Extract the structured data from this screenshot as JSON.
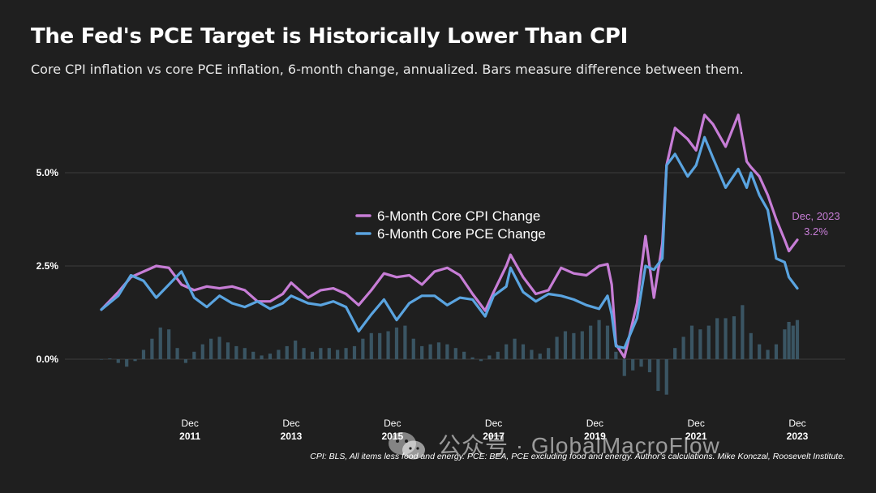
{
  "chart_data": {
    "type": "line",
    "title": "The Fed's PCE Target is Historically Lower Than CPI",
    "subtitle": "Core CPI inflation vs core PCE inflation, 6-month change, annualized. Bars measure difference between them.",
    "ylim": [
      -0.5,
      6.5
    ],
    "y_ticks": [
      "0.0%",
      "2.5%",
      "5.0%"
    ],
    "y_tick_values": [
      0,
      2.5,
      5.0
    ],
    "x_ticks": [
      {
        "month": "Dec",
        "year": "2011",
        "date": 2011.917
      },
      {
        "month": "Dec",
        "year": "2013",
        "date": 2013.917
      },
      {
        "month": "Dec",
        "year": "2015",
        "date": 2015.917
      },
      {
        "month": "Dec",
        "year": "2017",
        "date": 2017.917
      },
      {
        "month": "Dec",
        "year": "2019",
        "date": 2019.917
      },
      {
        "month": "Dec",
        "year": "2021",
        "date": 2021.917
      },
      {
        "month": "Dec",
        "year": "2023",
        "date": 2023.917
      }
    ],
    "xlim": [
      2009.5,
      2024.9
    ],
    "grid": true,
    "legend_position": "center",
    "series": [
      {
        "name": "6-Month Core CPI Change",
        "color": "#c77dd6",
        "points": [
          [
            2010.167,
            1.33
          ],
          [
            2010.5,
            1.8
          ],
          [
            2010.75,
            2.2
          ],
          [
            2011.0,
            2.35
          ],
          [
            2011.25,
            2.5
          ],
          [
            2011.5,
            2.45
          ],
          [
            2011.75,
            2.0
          ],
          [
            2012.0,
            1.85
          ],
          [
            2012.25,
            1.95
          ],
          [
            2012.5,
            1.9
          ],
          [
            2012.75,
            1.95
          ],
          [
            2013.0,
            1.85
          ],
          [
            2013.25,
            1.55
          ],
          [
            2013.5,
            1.55
          ],
          [
            2013.75,
            1.75
          ],
          [
            2013.917,
            2.05
          ],
          [
            2014.25,
            1.65
          ],
          [
            2014.5,
            1.85
          ],
          [
            2014.75,
            1.9
          ],
          [
            2015.0,
            1.75
          ],
          [
            2015.25,
            1.45
          ],
          [
            2015.5,
            1.85
          ],
          [
            2015.75,
            2.3
          ],
          [
            2016.0,
            2.2
          ],
          [
            2016.25,
            2.25
          ],
          [
            2016.5,
            2.0
          ],
          [
            2016.75,
            2.35
          ],
          [
            2017.0,
            2.45
          ],
          [
            2017.25,
            2.25
          ],
          [
            2017.5,
            1.75
          ],
          [
            2017.75,
            1.3
          ],
          [
            2017.917,
            1.8
          ],
          [
            2018.167,
            2.5
          ],
          [
            2018.25,
            2.8
          ],
          [
            2018.5,
            2.2
          ],
          [
            2018.75,
            1.75
          ],
          [
            2019.0,
            1.85
          ],
          [
            2019.25,
            2.45
          ],
          [
            2019.5,
            2.3
          ],
          [
            2019.75,
            2.25
          ],
          [
            2020.0,
            2.5
          ],
          [
            2020.167,
            2.55
          ],
          [
            2020.25,
            2.0
          ],
          [
            2020.333,
            0.4
          ],
          [
            2020.5,
            0.05
          ],
          [
            2020.75,
            1.5
          ],
          [
            2020.917,
            3.3
          ],
          [
            2021.083,
            1.65
          ],
          [
            2021.25,
            3.1
          ],
          [
            2021.333,
            5.2
          ],
          [
            2021.5,
            6.2
          ],
          [
            2021.75,
            5.9
          ],
          [
            2021.917,
            5.6
          ],
          [
            2022.083,
            6.55
          ],
          [
            2022.25,
            6.3
          ],
          [
            2022.5,
            5.7
          ],
          [
            2022.75,
            6.55
          ],
          [
            2022.917,
            5.3
          ],
          [
            2023.0,
            5.15
          ],
          [
            2023.167,
            4.9
          ],
          [
            2023.333,
            4.4
          ],
          [
            2023.5,
            3.75
          ],
          [
            2023.667,
            3.2
          ],
          [
            2023.75,
            2.9
          ],
          [
            2023.917,
            3.2
          ]
        ]
      },
      {
        "name": "6-Month Core PCE Change",
        "color": "#5aa4e0",
        "points": [
          [
            2010.167,
            1.33
          ],
          [
            2010.5,
            1.7
          ],
          [
            2010.75,
            2.25
          ],
          [
            2011.0,
            2.1
          ],
          [
            2011.25,
            1.65
          ],
          [
            2011.5,
            2.0
          ],
          [
            2011.75,
            2.35
          ],
          [
            2012.0,
            1.65
          ],
          [
            2012.25,
            1.4
          ],
          [
            2012.5,
            1.7
          ],
          [
            2012.75,
            1.5
          ],
          [
            2013.0,
            1.4
          ],
          [
            2013.25,
            1.55
          ],
          [
            2013.5,
            1.35
          ],
          [
            2013.75,
            1.5
          ],
          [
            2013.917,
            1.7
          ],
          [
            2014.25,
            1.5
          ],
          [
            2014.5,
            1.45
          ],
          [
            2014.75,
            1.55
          ],
          [
            2015.0,
            1.4
          ],
          [
            2015.25,
            0.75
          ],
          [
            2015.5,
            1.2
          ],
          [
            2015.75,
            1.6
          ],
          [
            2016.0,
            1.05
          ],
          [
            2016.25,
            1.5
          ],
          [
            2016.5,
            1.7
          ],
          [
            2016.75,
            1.7
          ],
          [
            2017.0,
            1.45
          ],
          [
            2017.25,
            1.65
          ],
          [
            2017.5,
            1.6
          ],
          [
            2017.75,
            1.15
          ],
          [
            2017.917,
            1.7
          ],
          [
            2018.167,
            1.95
          ],
          [
            2018.25,
            2.45
          ],
          [
            2018.5,
            1.8
          ],
          [
            2018.75,
            1.55
          ],
          [
            2019.0,
            1.75
          ],
          [
            2019.25,
            1.7
          ],
          [
            2019.5,
            1.6
          ],
          [
            2019.75,
            1.45
          ],
          [
            2020.0,
            1.35
          ],
          [
            2020.167,
            1.7
          ],
          [
            2020.25,
            1.2
          ],
          [
            2020.333,
            0.35
          ],
          [
            2020.5,
            0.3
          ],
          [
            2020.75,
            1.1
          ],
          [
            2020.917,
            2.5
          ],
          [
            2021.083,
            2.4
          ],
          [
            2021.25,
            2.7
          ],
          [
            2021.333,
            5.2
          ],
          [
            2021.5,
            5.5
          ],
          [
            2021.75,
            4.9
          ],
          [
            2021.917,
            5.2
          ],
          [
            2022.083,
            5.95
          ],
          [
            2022.25,
            5.4
          ],
          [
            2022.5,
            4.6
          ],
          [
            2022.75,
            5.1
          ],
          [
            2022.917,
            4.6
          ],
          [
            2023.0,
            5.0
          ],
          [
            2023.167,
            4.4
          ],
          [
            2023.333,
            4.0
          ],
          [
            2023.5,
            2.7
          ],
          [
            2023.667,
            2.6
          ],
          [
            2023.75,
            2.2
          ],
          [
            2023.917,
            1.9
          ]
        ]
      }
    ],
    "bars": {
      "name": "Difference",
      "color": "#3a5563",
      "points": [
        [
          2010.167,
          0.0
        ],
        [
          2010.333,
          0.02
        ],
        [
          2010.5,
          -0.1
        ],
        [
          2010.667,
          -0.2
        ],
        [
          2010.833,
          -0.05
        ],
        [
          2011.0,
          0.25
        ],
        [
          2011.167,
          0.55
        ],
        [
          2011.333,
          0.85
        ],
        [
          2011.5,
          0.8
        ],
        [
          2011.667,
          0.3
        ],
        [
          2011.833,
          -0.1
        ],
        [
          2012.0,
          0.2
        ],
        [
          2012.167,
          0.4
        ],
        [
          2012.333,
          0.55
        ],
        [
          2012.5,
          0.6
        ],
        [
          2012.667,
          0.45
        ],
        [
          2012.833,
          0.35
        ],
        [
          2013.0,
          0.3
        ],
        [
          2013.167,
          0.2
        ],
        [
          2013.333,
          0.1
        ],
        [
          2013.5,
          0.15
        ],
        [
          2013.667,
          0.25
        ],
        [
          2013.833,
          0.35
        ],
        [
          2014.0,
          0.5
        ],
        [
          2014.167,
          0.3
        ],
        [
          2014.333,
          0.2
        ],
        [
          2014.5,
          0.3
        ],
        [
          2014.667,
          0.3
        ],
        [
          2014.833,
          0.25
        ],
        [
          2015.0,
          0.3
        ],
        [
          2015.167,
          0.35
        ],
        [
          2015.333,
          0.55
        ],
        [
          2015.5,
          0.7
        ],
        [
          2015.667,
          0.7
        ],
        [
          2015.833,
          0.75
        ],
        [
          2016.0,
          0.85
        ],
        [
          2016.167,
          0.9
        ],
        [
          2016.333,
          0.55
        ],
        [
          2016.5,
          0.35
        ],
        [
          2016.667,
          0.4
        ],
        [
          2016.833,
          0.45
        ],
        [
          2017.0,
          0.4
        ],
        [
          2017.167,
          0.3
        ],
        [
          2017.333,
          0.2
        ],
        [
          2017.5,
          0.05
        ],
        [
          2017.667,
          -0.05
        ],
        [
          2017.833,
          0.1
        ],
        [
          2018.0,
          0.2
        ],
        [
          2018.167,
          0.4
        ],
        [
          2018.333,
          0.55
        ],
        [
          2018.5,
          0.4
        ],
        [
          2018.667,
          0.25
        ],
        [
          2018.833,
          0.15
        ],
        [
          2019.0,
          0.3
        ],
        [
          2019.167,
          0.6
        ],
        [
          2019.333,
          0.75
        ],
        [
          2019.5,
          0.7
        ],
        [
          2019.667,
          0.75
        ],
        [
          2019.833,
          0.9
        ],
        [
          2020.0,
          1.05
        ],
        [
          2020.167,
          0.9
        ],
        [
          2020.333,
          0.2
        ],
        [
          2020.5,
          -0.45
        ],
        [
          2020.667,
          -0.3
        ],
        [
          2020.833,
          -0.2
        ],
        [
          2021.0,
          -0.35
        ],
        [
          2021.167,
          -0.85
        ],
        [
          2021.333,
          -0.95
        ],
        [
          2021.5,
          0.3
        ],
        [
          2021.667,
          0.6
        ],
        [
          2021.833,
          0.9
        ],
        [
          2022.0,
          0.8
        ],
        [
          2022.167,
          0.9
        ],
        [
          2022.333,
          1.1
        ],
        [
          2022.5,
          1.1
        ],
        [
          2022.667,
          1.15
        ],
        [
          2022.833,
          1.45
        ],
        [
          2023.0,
          0.7
        ],
        [
          2023.167,
          0.4
        ],
        [
          2023.333,
          0.25
        ],
        [
          2023.5,
          0.4
        ],
        [
          2023.667,
          0.8
        ],
        [
          2023.75,
          1.0
        ],
        [
          2023.833,
          0.9
        ],
        [
          2023.917,
          1.05
        ]
      ]
    }
  },
  "legend": {
    "cpi": {
      "label": "6-Month Core CPI Change",
      "color": "#c77dd6"
    },
    "pce": {
      "label": "6-Month Core PCE Change",
      "color": "#5aa4e0"
    }
  },
  "annotation": {
    "date": "Dec, 2023",
    "value": "3.2%",
    "x": 2023.917,
    "y": 3.2
  },
  "source": "CPI: BLS, All items less food and energy. PCE: BEA, PCE excluding food and energy. Author's calculations. Mike Konczal, Roosevelt Institute.",
  "watermark": "公众号 · GlobalMacroFlow"
}
